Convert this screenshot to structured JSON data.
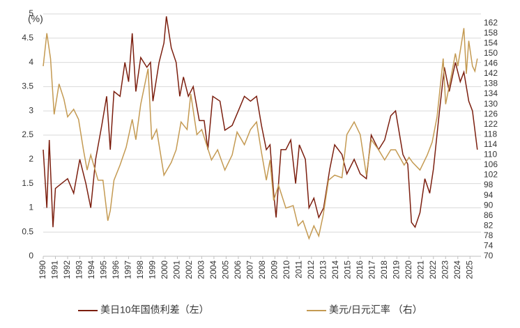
{
  "chart_data": {
    "type": "line",
    "y_label": "(%)",
    "xlim": [
      1990,
      2025.9
    ],
    "xticks": [
      1990,
      1991,
      1992,
      1993,
      1994,
      1995,
      1996,
      1997,
      1998,
      1999,
      2000,
      2001,
      2002,
      2003,
      2004,
      2005,
      2006,
      2007,
      2008,
      2009,
      2010,
      2011,
      2012,
      2013,
      2014,
      2015,
      2016,
      2017,
      2018,
      2019,
      2020,
      2021,
      2022,
      2023,
      2024,
      2025
    ],
    "ylim": [
      0,
      5
    ],
    "yticks": [
      0,
      0.5,
      1,
      1.5,
      2,
      2.5,
      3,
      3.5,
      4,
      4.5,
      5
    ],
    "y2lim": [
      70,
      165.6
    ],
    "y2ticks": [
      70,
      74,
      78,
      82,
      86,
      90,
      94,
      98,
      102,
      106,
      110,
      114,
      118,
      122,
      126,
      130,
      134,
      138,
      142,
      146,
      150,
      154,
      158,
      162
    ],
    "grid": true,
    "legend": "bottom",
    "series": [
      {
        "name": "美日10年国债利差（左）",
        "color": "#7b1e0e",
        "axis": "y",
        "x": [
          1990,
          1990.3,
          1990.5,
          1990.8,
          1991,
          1991.5,
          1992,
          1992.5,
          1993,
          1993.5,
          1993.9,
          1994.3,
          1994.8,
          1995.2,
          1995.5,
          1995.8,
          1996.3,
          1996.7,
          1997,
          1997.3,
          1997.6,
          1998,
          1998.5,
          1998.8,
          1999,
          1999.5,
          1999.9,
          2000.1,
          2000.5,
          2000.9,
          2001.2,
          2001.5,
          2001.9,
          2002.3,
          2002.8,
          2003.2,
          2003.5,
          2003.9,
          2004.5,
          2004.9,
          2005.5,
          2006,
          2006.5,
          2007,
          2007.5,
          2007.9,
          2008.3,
          2008.6,
          2008.9,
          2009.1,
          2009.5,
          2009.9,
          2010.3,
          2010.7,
          2011,
          2011.5,
          2011.8,
          2012.2,
          2012.6,
          2013,
          2013.5,
          2013.9,
          2014.5,
          2014.9,
          2015.5,
          2016,
          2016.5,
          2016.9,
          2017.5,
          2018,
          2018.5,
          2018.9,
          2019.5,
          2019.9,
          2020.2,
          2020.5,
          2020.9,
          2021.3,
          2021.7,
          2022,
          2022.5,
          2022.9,
          2023.3,
          2023.8,
          2024.2,
          2024.5,
          2024.9,
          2025.2,
          2025.6
        ],
        "values": [
          2.2,
          1.0,
          2.4,
          0.6,
          1.4,
          1.5,
          1.6,
          1.3,
          2.0,
          1.5,
          1.0,
          2.0,
          2.7,
          3.3,
          2.2,
          3.4,
          3.3,
          4.0,
          3.6,
          4.6,
          3.4,
          4.1,
          3.9,
          4.0,
          3.2,
          4.0,
          4.4,
          4.95,
          4.3,
          4.0,
          3.3,
          3.7,
          3.3,
          3.5,
          2.8,
          2.8,
          2.2,
          3.3,
          3.2,
          2.6,
          2.7,
          3.0,
          3.3,
          3.2,
          3.3,
          2.7,
          2.2,
          2.3,
          1.3,
          0.8,
          2.2,
          2.2,
          2.4,
          1.5,
          2.3,
          2.0,
          1.0,
          1.2,
          0.8,
          1.0,
          1.8,
          2.3,
          2.1,
          1.7,
          2.0,
          1.7,
          1.6,
          2.5,
          2.2,
          2.4,
          2.9,
          3.0,
          2.1,
          1.9,
          0.7,
          0.6,
          0.9,
          1.6,
          1.3,
          1.8,
          3.0,
          3.9,
          3.4,
          4.0,
          3.6,
          3.8,
          3.2,
          3.0,
          2.2
        ]
      },
      {
        "name": "美元/日元汇率 （右）",
        "color": "#c49a52",
        "axis": "y2",
        "x": [
          1990,
          1990.3,
          1990.6,
          1990.9,
          1991.3,
          1991.7,
          1992,
          1992.5,
          1992.9,
          1993.3,
          1993.6,
          1993.9,
          1994.5,
          1994.9,
          1995.3,
          1995.5,
          1995.8,
          1996.3,
          1996.8,
          1997.3,
          1997.6,
          1998,
          1998.6,
          1998.9,
          1999.3,
          1999.9,
          2000.5,
          2000.9,
          2001.3,
          2001.8,
          2002.1,
          2002.6,
          2003,
          2003.8,
          2004.3,
          2004.9,
          2005.5,
          2005.9,
          2006.5,
          2007,
          2007.5,
          2007.9,
          2008.3,
          2008.6,
          2008.9,
          2009.3,
          2009.9,
          2010.5,
          2010.9,
          2011.3,
          2011.8,
          2012.2,
          2012.6,
          2012.95,
          2013.4,
          2013.9,
          2014.5,
          2014.9,
          2015.5,
          2016,
          2016.5,
          2016.9,
          2017.5,
          2018,
          2018.5,
          2018.9,
          2019.6,
          2020,
          2020.3,
          2020.9,
          2021.5,
          2021.9,
          2022.3,
          2022.8,
          2023,
          2023.5,
          2023.8,
          2024,
          2024.5,
          2024.7,
          2024.9,
          2025.2,
          2025.4,
          2025.6
        ],
        "values": [
          145,
          158,
          148,
          126,
          138,
          132,
          125,
          128,
          124,
          112,
          104,
          110,
          100,
          100,
          84,
          88,
          100,
          106,
          113,
          124,
          116,
          130,
          144,
          116,
          120,
          102,
          107,
          112,
          123,
          120,
          134,
          118,
          120,
          108,
          112,
          104,
          110,
          119,
          114,
          120,
          123,
          111,
          100,
          108,
          92,
          98,
          89,
          90,
          82,
          84,
          77,
          82,
          78,
          86,
          100,
          102,
          101,
          118,
          123,
          118,
          102,
          116,
          112,
          108,
          112,
          112,
          106,
          109,
          107,
          104,
          110,
          115,
          125,
          148,
          130,
          142,
          150,
          145,
          160,
          142,
          155,
          145,
          143,
          148
        ]
      }
    ]
  }
}
